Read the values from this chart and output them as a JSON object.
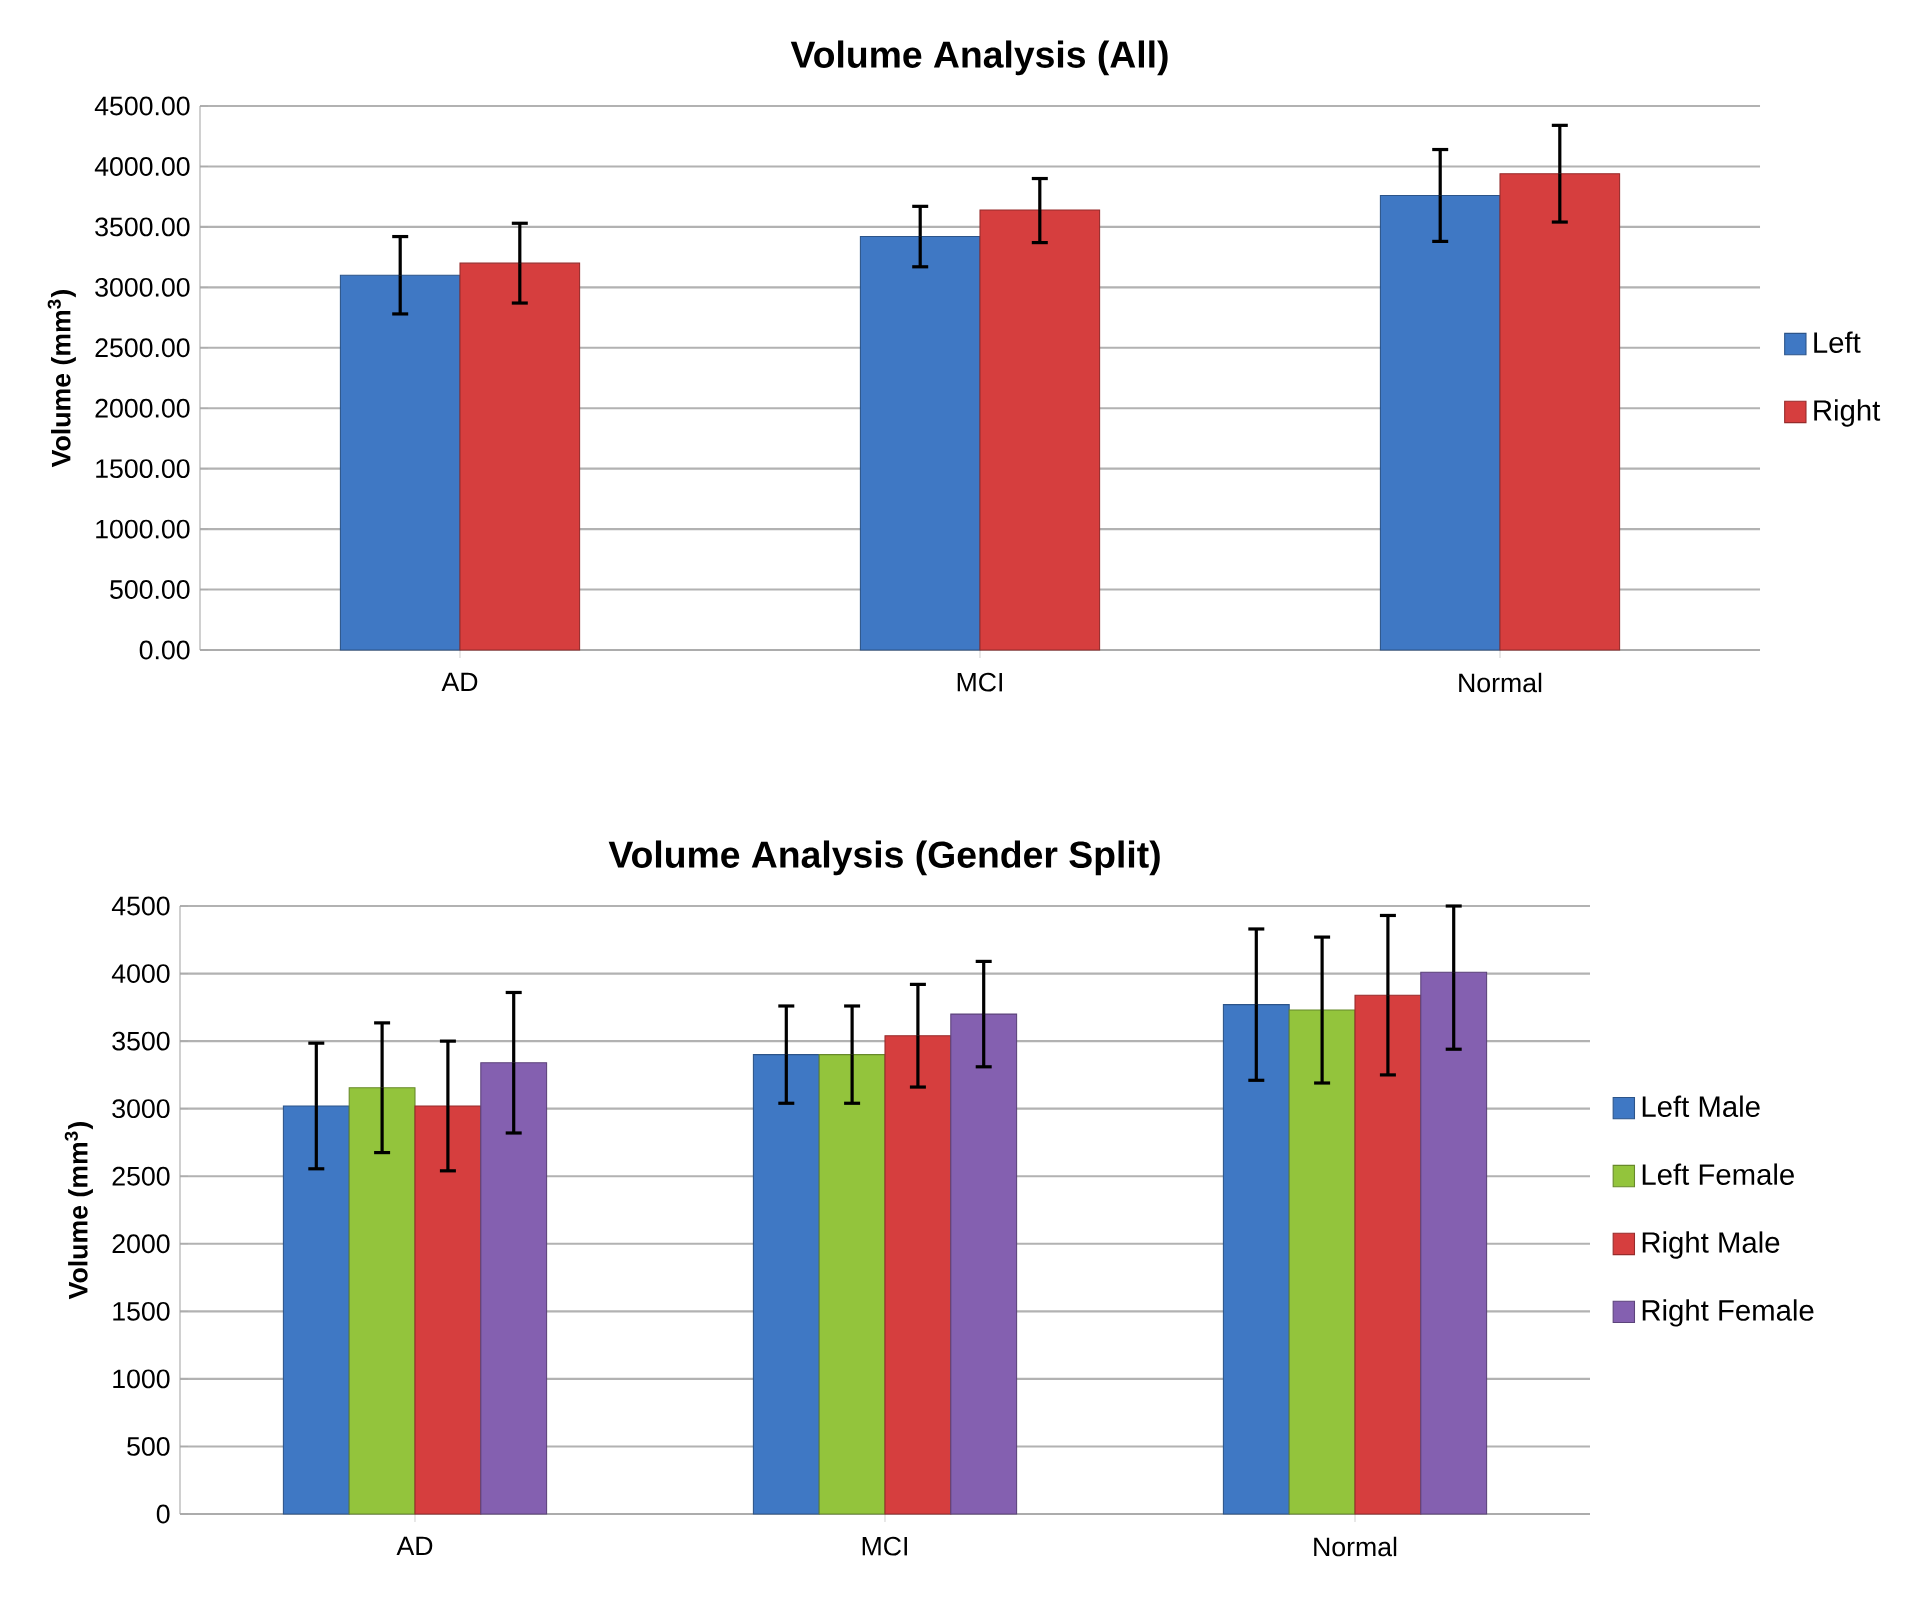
{
  "chart_data": [
    {
      "type": "bar",
      "title": "Volume Analysis (All)",
      "ylabel": "Volume (mm$^{3}$)",
      "categories": [
        "AD",
        "MCI",
        "Normal"
      ],
      "series": [
        {
          "name": "Left",
          "color": "#3f78c4",
          "values": [
            3100,
            3420,
            3760
          ],
          "errors": [
            320,
            250,
            380
          ]
        },
        {
          "name": "Right",
          "color": "#d63e3e",
          "values": [
            3200,
            3640,
            3940
          ],
          "errors": [
            330,
            [
              3370,
              3900
            ],
            400
          ]
        }
      ],
      "ylim": [
        0,
        4500
      ],
      "yticks": [
        {
          "value": 0,
          "label": "0.00"
        },
        {
          "value": 500,
          "label": "500.00"
        },
        {
          "value": 1000,
          "label": "1000.00"
        },
        {
          "value": 1500,
          "label": "1500.00"
        },
        {
          "value": 2000,
          "label": "2000.00"
        },
        {
          "value": 2500,
          "label": "2500.00"
        },
        {
          "value": 3000,
          "label": "3000.00"
        },
        {
          "value": 3500,
          "label": "3500.00"
        },
        {
          "value": 4000,
          "label": "4000.00"
        },
        {
          "value": 4500,
          "label": "4500.00"
        }
      ],
      "grid": "y",
      "legend": "right"
    },
    {
      "type": "bar",
      "title": "Volume Analysis (Gender Split)",
      "ylabel": "Volume (mm$^{3}$)",
      "categories": [
        "AD",
        "MCI",
        "Normal"
      ],
      "series": [
        {
          "name": "Left Male",
          "color": "#3f78c4",
          "values": [
            3020,
            3400,
            3770
          ],
          "errors": [
            465,
            360,
            560
          ]
        },
        {
          "name": "Left Female",
          "color": "#93c43c",
          "values": [
            3155,
            3400,
            3730
          ],
          "errors": [
            480,
            360,
            540
          ]
        },
        {
          "name": "Right Male",
          "color": "#d63e3e",
          "values": [
            3020,
            3540,
            3840
          ],
          "errors": [
            480,
            380,
            590
          ]
        },
        {
          "name": "Right Female",
          "color": "#8460b0",
          "values": [
            3340,
            3700,
            4010
          ],
          "errors": [
            520,
            390,
            [
              3440,
              4500
            ]
          ]
        }
      ],
      "ylim": [
        0,
        4500
      ],
      "yticks": [
        0,
        500,
        1000,
        1500,
        2000,
        2500,
        3000,
        3500,
        4000,
        4500
      ],
      "grid": "y",
      "legend": "right"
    }
  ]
}
